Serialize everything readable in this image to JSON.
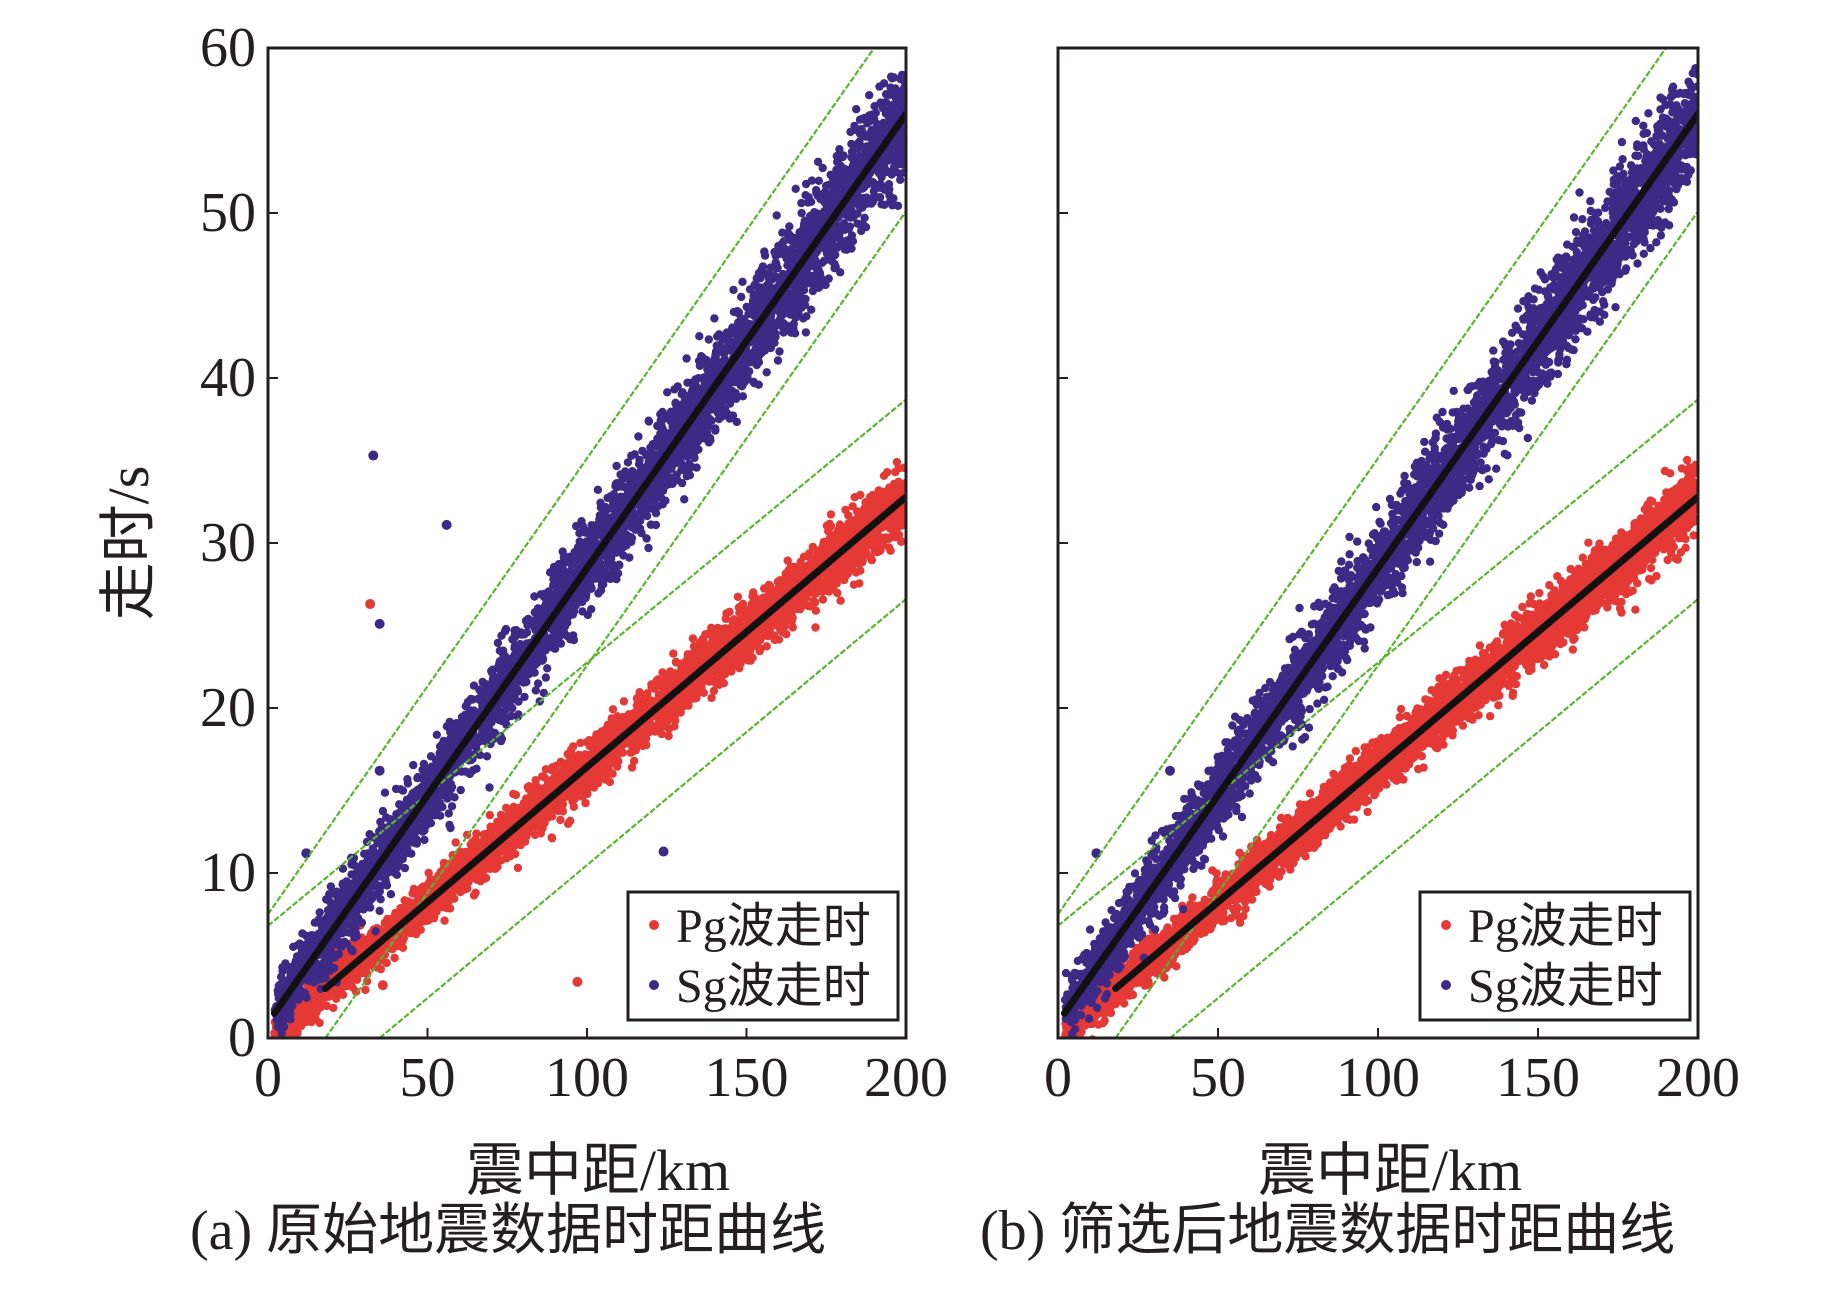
{
  "colors": {
    "pg": "#e53935",
    "sg": "#3d2a87",
    "fit_line": "#111111",
    "bound_line": "#5ab52e",
    "axis": "#231f20"
  },
  "shared_ylabel": "走时/s",
  "chart_data": [
    {
      "type": "scatter",
      "panel": "a",
      "caption": "(a) 原始地震数据时距曲线",
      "xlabel": "震中距/km",
      "ylabel": "走时/s",
      "xlim": [
        0,
        200
      ],
      "ylim": [
        0,
        60
      ],
      "x_ticks": [
        "0",
        "50",
        "100",
        "150",
        "200"
      ],
      "y_ticks": [
        "0",
        "10",
        "20",
        "30",
        "40",
        "50",
        "60"
      ],
      "show_y_tick_labels": true,
      "grid": false,
      "legend_position": "bottom-right",
      "series": [
        {
          "name": "Pg波走时",
          "color_key": "pg",
          "fit": {
            "x": [
              18,
              200
            ],
            "y": [
              3.0,
              32.8
            ]
          },
          "scatter_spread_s": 1.0,
          "scatter_x_range": [
            2,
            200
          ],
          "upper_bound": {
            "x": [
              0,
              200
            ],
            "y": [
              6.8,
              38.7
            ]
          },
          "lower_bound": {
            "x": [
              35,
              200
            ],
            "y": [
              0,
              26.6
            ]
          },
          "outliers": [
            {
              "x": 32,
              "y": 26.3
            },
            {
              "x": 97,
              "y": 3.4
            },
            {
              "x": 36,
              "y": 3.2
            }
          ]
        },
        {
          "name": "Sg波走时",
          "color_key": "sg",
          "fit": {
            "x": [
              2,
              200
            ],
            "y": [
              1.5,
              56.0
            ]
          },
          "scatter_spread_s": 1.7,
          "scatter_x_range": [
            2,
            200
          ],
          "upper_bound": {
            "x": [
              0,
              190
            ],
            "y": [
              7.5,
              60
            ]
          },
          "lower_bound": {
            "x": [
              18,
              200
            ],
            "y": [
              0,
              50.1
            ]
          },
          "outliers": [
            {
              "x": 33,
              "y": 35.3
            },
            {
              "x": 56,
              "y": 31.1
            },
            {
              "x": 35,
              "y": 25.1
            },
            {
              "x": 124,
              "y": 11.3
            },
            {
              "x": 12,
              "y": 11.2
            },
            {
              "x": 35,
              "y": 16.2
            }
          ]
        }
      ]
    },
    {
      "type": "scatter",
      "panel": "b",
      "caption": "(b) 筛选后地震数据时距曲线",
      "xlabel": "震中距/km",
      "ylabel": "",
      "xlim": [
        0,
        200
      ],
      "ylim": [
        0,
        60
      ],
      "x_ticks": [
        "0",
        "50",
        "100",
        "150",
        "200"
      ],
      "y_ticks": [],
      "show_y_tick_labels": false,
      "grid": false,
      "legend_position": "bottom-right",
      "series": [
        {
          "name": "Pg波走时",
          "color_key": "pg",
          "fit": {
            "x": [
              18,
              200
            ],
            "y": [
              3.0,
              32.8
            ]
          },
          "scatter_spread_s": 1.0,
          "scatter_x_range": [
            2,
            200
          ],
          "upper_bound": {
            "x": [
              0,
              200
            ],
            "y": [
              6.8,
              38.7
            ]
          },
          "lower_bound": {
            "x": [
              35,
              200
            ],
            "y": [
              0,
              26.6
            ]
          },
          "outliers": []
        },
        {
          "name": "Sg波走时",
          "color_key": "sg",
          "fit": {
            "x": [
              2,
              200
            ],
            "y": [
              1.5,
              56.0
            ]
          },
          "scatter_spread_s": 1.7,
          "scatter_x_range": [
            2,
            200
          ],
          "upper_bound": {
            "x": [
              0,
              190
            ],
            "y": [
              7.5,
              60
            ]
          },
          "lower_bound": {
            "x": [
              18,
              200
            ],
            "y": [
              0,
              50.1
            ]
          },
          "outliers": [
            {
              "x": 35,
              "y": 16.2
            },
            {
              "x": 12,
              "y": 11.2
            }
          ]
        }
      ]
    }
  ]
}
